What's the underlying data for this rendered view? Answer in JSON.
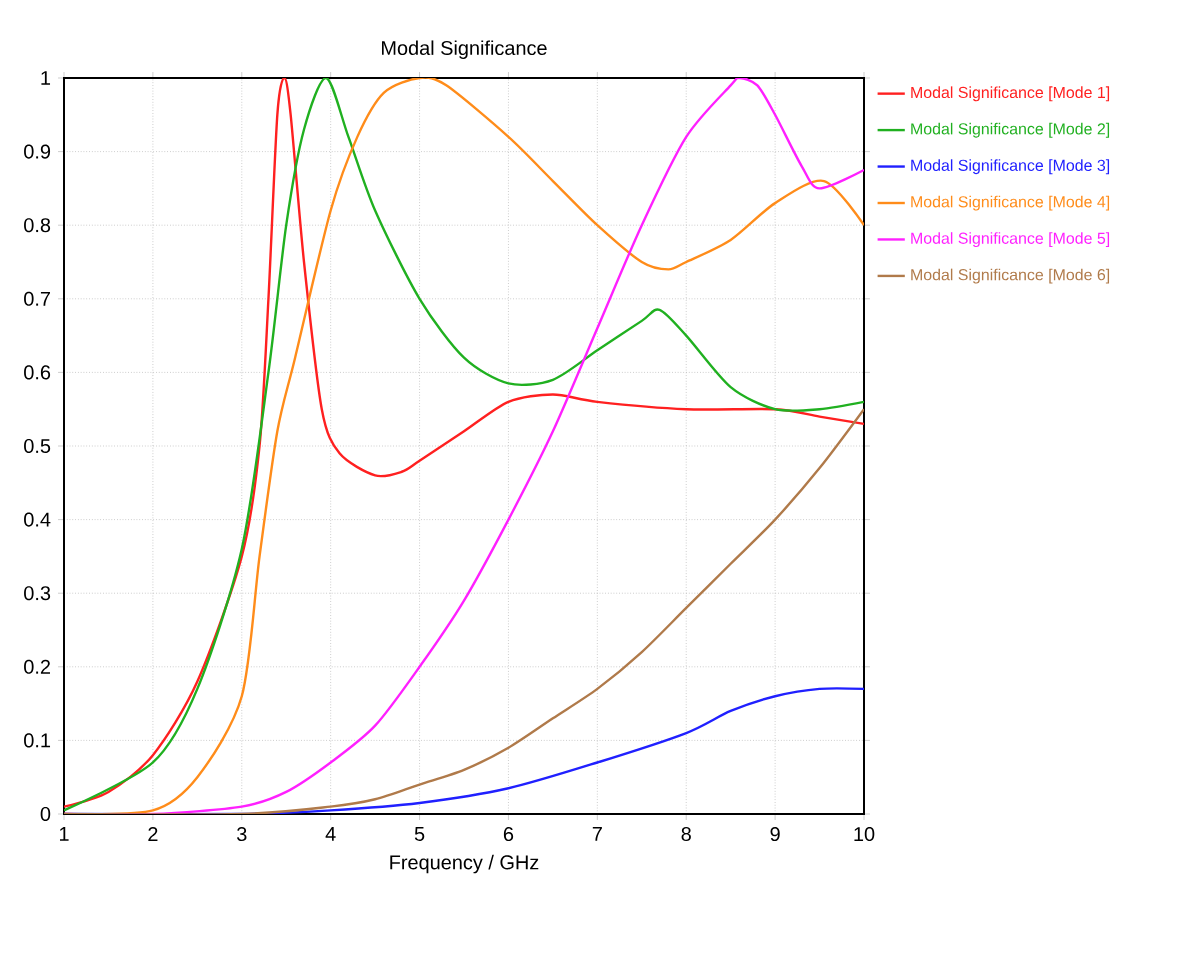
{
  "chart_data": {
    "type": "line",
    "title": "Modal Significance",
    "xlabel": "Frequency / GHz",
    "xlim": [
      1,
      10
    ],
    "ylim": [
      0,
      1
    ],
    "xticks": [
      1,
      2,
      3,
      4,
      5,
      6,
      7,
      8,
      9,
      10
    ],
    "yticks": [
      0,
      0.1,
      0.2,
      0.3,
      0.4,
      0.5,
      0.6,
      0.7,
      0.8,
      0.9,
      1
    ],
    "grid": true,
    "legend": "right",
    "marker": "none",
    "line_style": "solid",
    "series": [
      {
        "name": "Modal Significance [Mode 1]",
        "color": "#ff2020",
        "x": [
          1,
          1.5,
          2,
          2.5,
          3,
          3.2,
          3.3,
          3.4,
          3.48,
          3.55,
          3.7,
          3.9,
          4.1,
          4.5,
          4.8,
          5,
          5.5,
          6,
          6.5,
          7,
          8,
          9,
          9.5,
          10
        ],
        "values": [
          0.01,
          0.03,
          0.08,
          0.18,
          0.35,
          0.5,
          0.7,
          0.95,
          1.0,
          0.95,
          0.75,
          0.55,
          0.49,
          0.46,
          0.465,
          0.48,
          0.52,
          0.56,
          0.57,
          0.56,
          0.55,
          0.55,
          0.54,
          0.53
        ]
      },
      {
        "name": "Modal Significance [Mode 2]",
        "color": "#20b020",
        "x": [
          1,
          2,
          2.5,
          3,
          3.3,
          3.5,
          3.7,
          3.95,
          4.2,
          4.5,
          5,
          5.5,
          6,
          6.5,
          7,
          7.5,
          7.7,
          8,
          8.5,
          9,
          9.5,
          10
        ],
        "values": [
          0.005,
          0.07,
          0.17,
          0.36,
          0.6,
          0.8,
          0.93,
          1.0,
          0.92,
          0.82,
          0.7,
          0.62,
          0.585,
          0.59,
          0.63,
          0.67,
          0.685,
          0.65,
          0.58,
          0.55,
          0.55,
          0.56
        ]
      },
      {
        "name": "Modal Significance [Mode 3]",
        "color": "#2020ff",
        "x": [
          1,
          3,
          4,
          5,
          6,
          7,
          8,
          8.5,
          9,
          9.5,
          10
        ],
        "values": [
          0,
          0,
          0.005,
          0.015,
          0.035,
          0.07,
          0.11,
          0.14,
          0.16,
          0.17,
          0.17
        ]
      },
      {
        "name": "Modal Significance [Mode 4]",
        "color": "#ff8c1a",
        "x": [
          1,
          2,
          2.5,
          3,
          3.2,
          3.4,
          3.6,
          4,
          4.3,
          4.6,
          5,
          5.3,
          6,
          6.5,
          7,
          7.5,
          7.8,
          8,
          8.5,
          9,
          9.55,
          10
        ],
        "values": [
          0,
          0.005,
          0.05,
          0.16,
          0.35,
          0.52,
          0.62,
          0.82,
          0.92,
          0.98,
          1.0,
          0.99,
          0.92,
          0.86,
          0.8,
          0.75,
          0.74,
          0.75,
          0.78,
          0.83,
          0.86,
          0.8
        ]
      },
      {
        "name": "Modal Significance [Mode 5]",
        "color": "#ff20ff",
        "x": [
          1,
          2,
          3,
          3.5,
          4,
          4.5,
          5,
          5.5,
          6,
          6.5,
          7,
          7.5,
          8,
          8.5,
          8.6,
          8.8,
          9,
          9.3,
          9.5,
          10
        ],
        "values": [
          0,
          0,
          0.01,
          0.03,
          0.07,
          0.12,
          0.2,
          0.29,
          0.4,
          0.52,
          0.66,
          0.8,
          0.92,
          0.99,
          1.0,
          0.99,
          0.95,
          0.88,
          0.85,
          0.875
        ]
      },
      {
        "name": "Modal Significance [Mode 6]",
        "color": "#b07a4a",
        "x": [
          1,
          3,
          4,
          4.5,
          5,
          5.5,
          6,
          6.5,
          7,
          7.5,
          8,
          8.5,
          9,
          9.5,
          10
        ],
        "values": [
          0,
          0,
          0.01,
          0.02,
          0.04,
          0.06,
          0.09,
          0.13,
          0.17,
          0.22,
          0.28,
          0.34,
          0.4,
          0.47,
          0.55
        ]
      }
    ]
  }
}
